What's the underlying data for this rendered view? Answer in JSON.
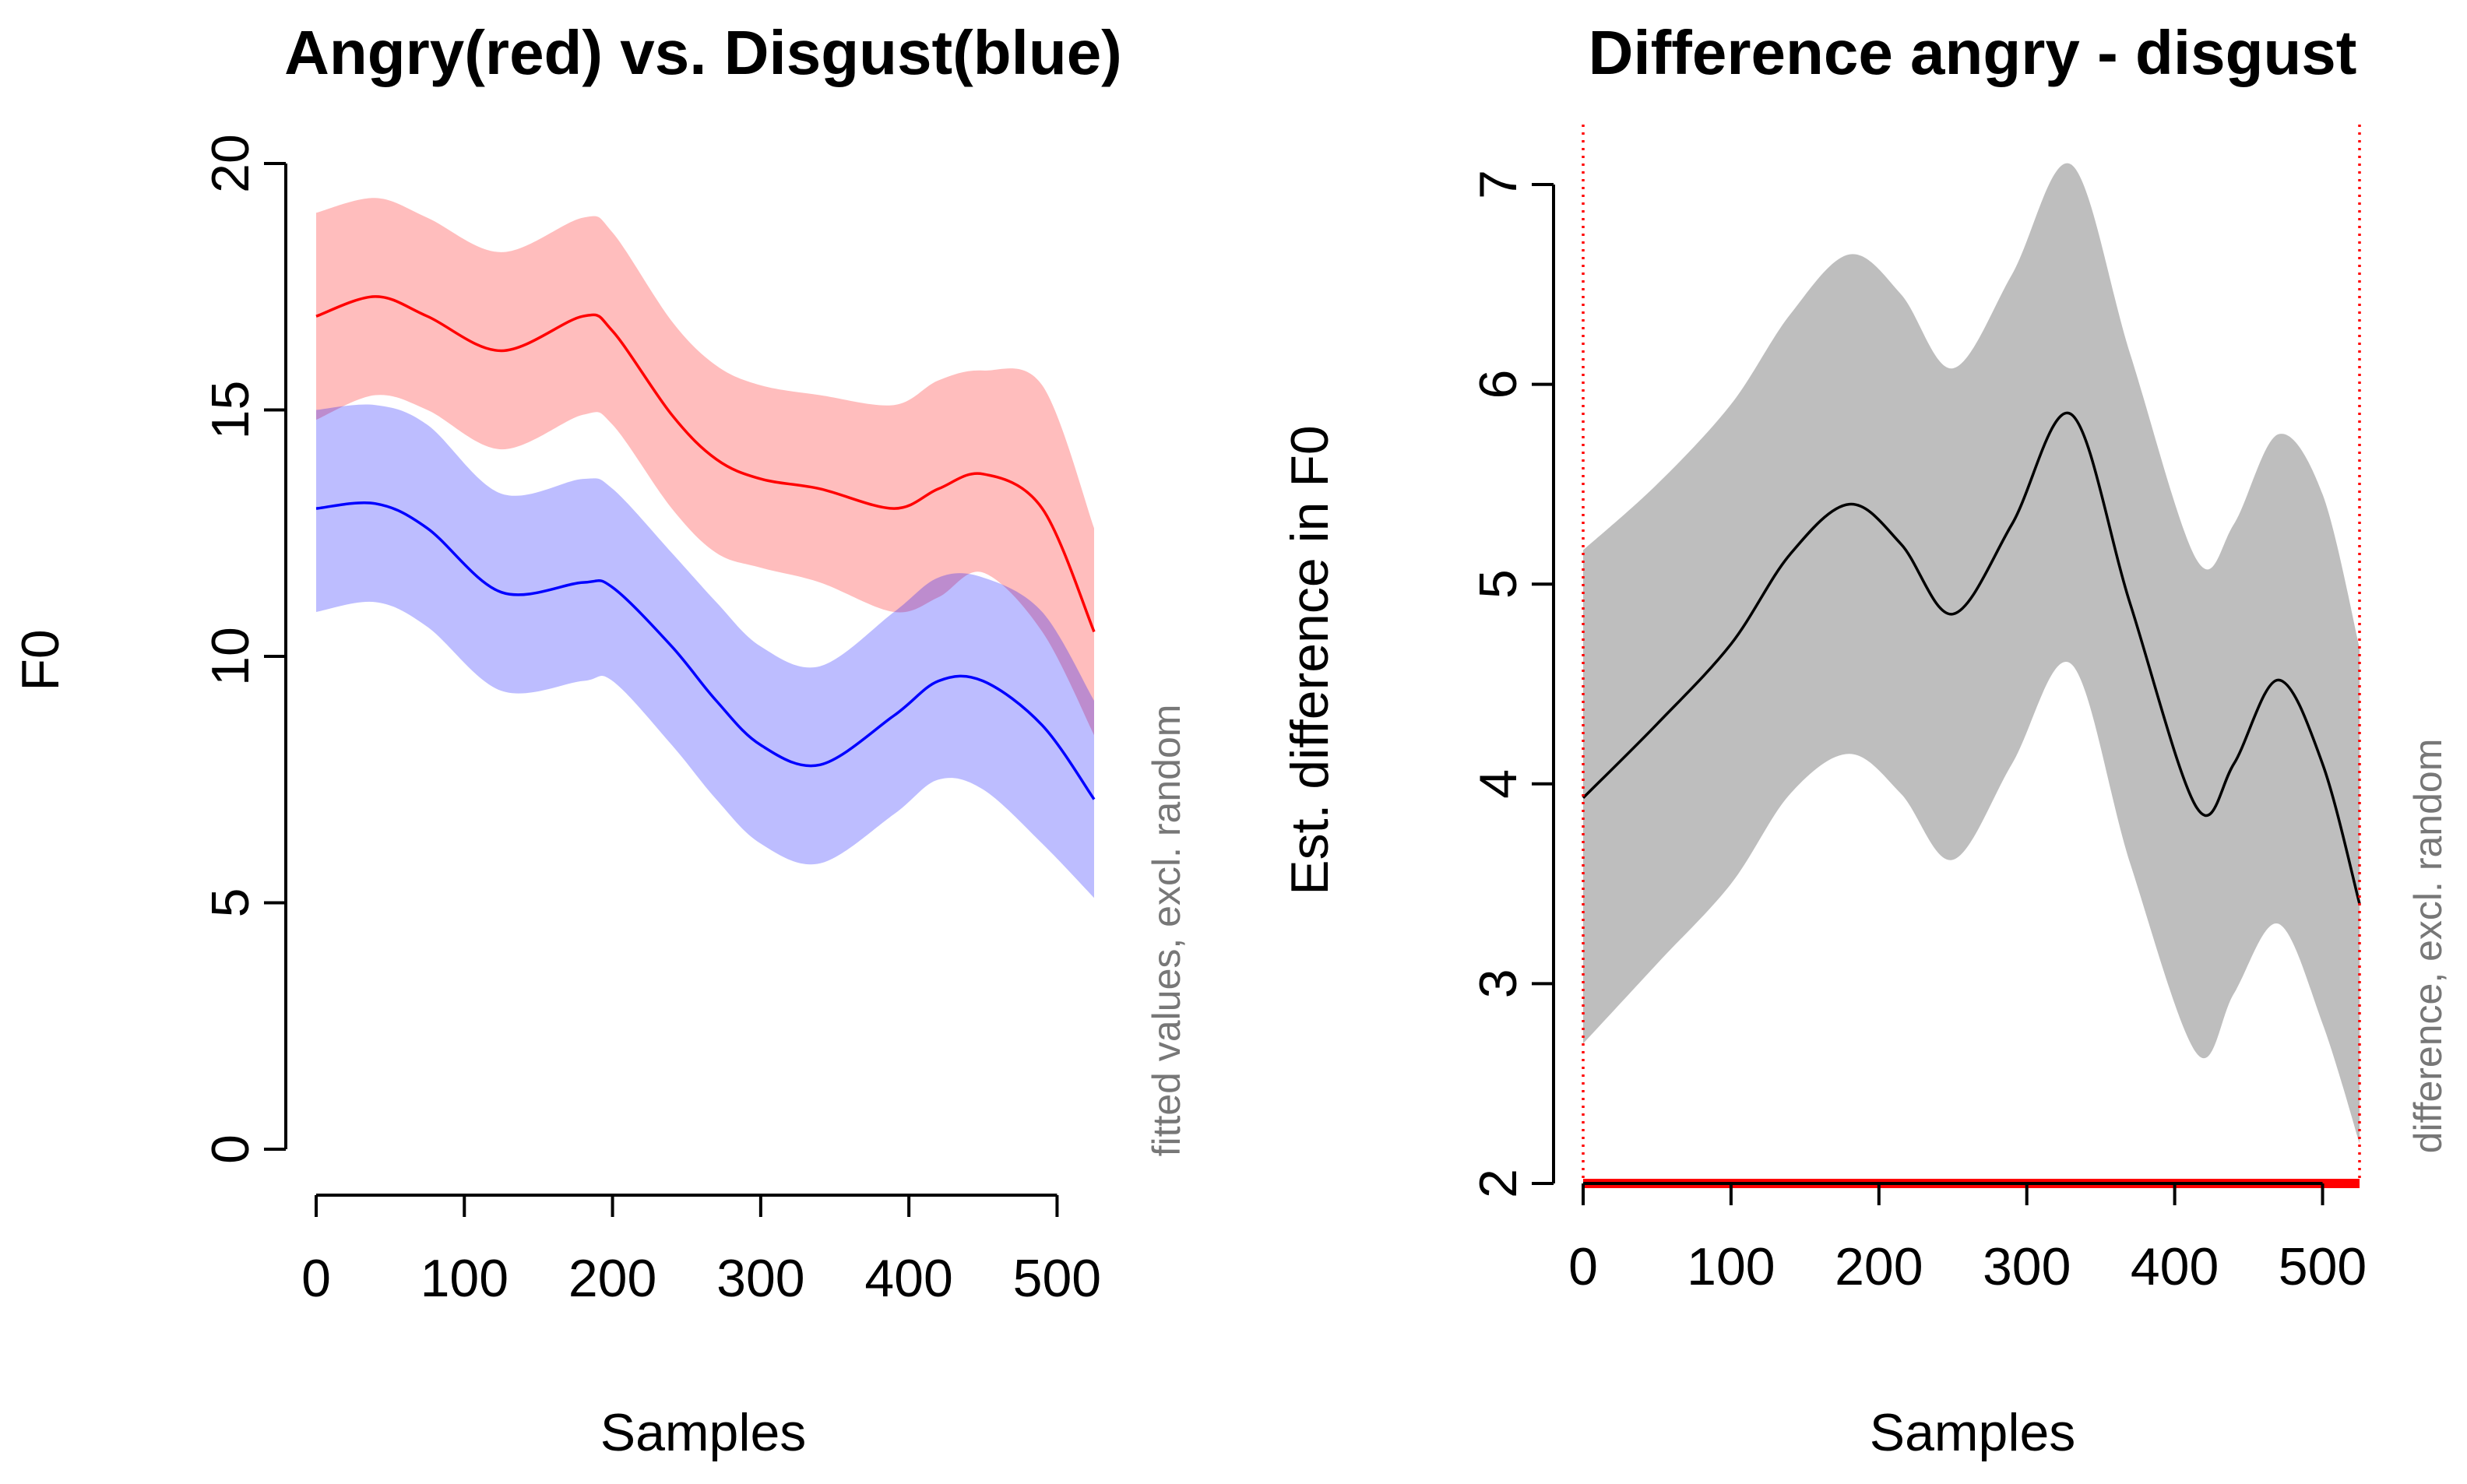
{
  "chart_data": [
    {
      "type": "line",
      "title": "Angry(red) vs. Disgust(blue)",
      "xlabel": "Samples",
      "ylabel": "F0",
      "side_note": "fitted values, excl. random",
      "xlim": [
        0,
        525
      ],
      "ylim": [
        0,
        20
      ],
      "xticks": [
        0,
        100,
        200,
        300,
        400,
        500
      ],
      "yticks": [
        0,
        5,
        10,
        15,
        20
      ],
      "x": [
        0,
        40,
        75,
        125,
        180,
        200,
        240,
        270,
        300,
        340,
        390,
        420,
        450,
        490,
        525
      ],
      "series": [
        {
          "name": "Angry",
          "color": "#ff0000",
          "band_color": "#ff0000",
          "values": [
            16.9,
            17.3,
            16.9,
            16.2,
            16.9,
            16.6,
            14.9,
            14.0,
            13.6,
            13.4,
            13.0,
            13.4,
            13.7,
            13.0,
            10.5
          ],
          "lower": [
            14.8,
            15.3,
            15.0,
            14.2,
            14.9,
            14.7,
            13.0,
            12.1,
            11.8,
            11.5,
            10.9,
            11.2,
            11.7,
            10.5,
            8.4
          ],
          "upper": [
            19.0,
            19.3,
            18.9,
            18.2,
            18.9,
            18.6,
            16.8,
            15.9,
            15.5,
            15.3,
            15.1,
            15.6,
            15.8,
            15.5,
            12.6
          ]
        },
        {
          "name": "Disgust",
          "color": "#0000ff",
          "band_color": "#0000ff",
          "values": [
            13.0,
            13.1,
            12.6,
            11.3,
            11.5,
            11.4,
            10.2,
            9.1,
            8.2,
            7.8,
            8.8,
            9.5,
            9.5,
            8.6,
            7.1
          ],
          "lower": [
            10.9,
            11.1,
            10.6,
            9.3,
            9.5,
            9.5,
            8.2,
            7.1,
            6.2,
            5.8,
            6.8,
            7.5,
            7.3,
            6.2,
            5.1
          ],
          "upper": [
            15.0,
            15.1,
            14.7,
            13.3,
            13.6,
            13.4,
            12.1,
            11.1,
            10.2,
            9.8,
            10.9,
            11.6,
            11.6,
            10.9,
            9.1
          ]
        }
      ]
    },
    {
      "type": "line",
      "title": "Difference angry - disgust",
      "xlabel": "Samples",
      "ylabel": "Est. difference in F0",
      "side_note": "difference, excl. random",
      "xlim": [
        0,
        525
      ],
      "ylim": [
        2,
        7
      ],
      "xticks": [
        0,
        100,
        200,
        300,
        400,
        500
      ],
      "yticks": [
        2,
        3,
        4,
        5,
        6,
        7
      ],
      "x": [
        0,
        50,
        100,
        140,
        180,
        215,
        250,
        290,
        330,
        370,
        415,
        440,
        470,
        500,
        525
      ],
      "series": [
        {
          "name": "difference",
          "color": "#000000",
          "band_color": "#bebebe",
          "values": [
            3.93,
            4.3,
            4.7,
            5.15,
            5.4,
            5.2,
            4.85,
            5.3,
            5.85,
            4.9,
            3.88,
            4.1,
            4.52,
            4.1,
            3.4
          ],
          "lower": [
            2.7,
            3.1,
            3.5,
            3.95,
            4.15,
            3.95,
            3.62,
            4.1,
            4.6,
            3.6,
            2.65,
            2.95,
            3.3,
            2.8,
            2.2
          ],
          "upper": [
            5.17,
            5.5,
            5.9,
            6.35,
            6.65,
            6.45,
            6.08,
            6.55,
            7.1,
            6.15,
            5.12,
            5.3,
            5.75,
            5.45,
            4.68
          ]
        }
      ],
      "significance_window": [
        0,
        525
      ],
      "significance_color": "#ff0000"
    }
  ]
}
